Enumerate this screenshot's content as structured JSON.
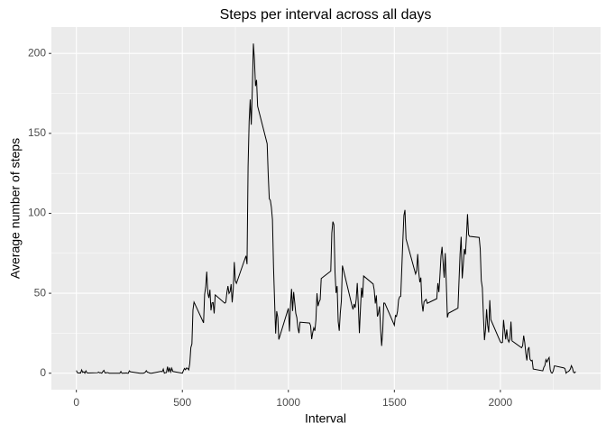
{
  "chart_data": {
    "type": "line",
    "title": "Steps per interval across all days",
    "x_label": "Interval",
    "y_label": "Average number of steps",
    "color": "#000000",
    "grid": true,
    "xlim": [
      -117.75,
      2472.75
    ],
    "ylim": [
      -10.31,
      216.48
    ],
    "xticks": [
      0,
      500,
      1000,
      1500,
      2000
    ],
    "yticks": [
      0,
      50,
      100,
      150,
      200
    ],
    "xminor": [
      250,
      750,
      1250,
      1750,
      2250
    ],
    "yminor": [
      25,
      75,
      125,
      175
    ],
    "x": [
      0,
      5,
      10,
      15,
      20,
      25,
      30,
      35,
      40,
      45,
      50,
      55,
      100,
      105,
      110,
      115,
      120,
      125,
      130,
      135,
      140,
      145,
      150,
      155,
      200,
      205,
      210,
      215,
      220,
      225,
      230,
      235,
      240,
      245,
      250,
      255,
      300,
      305,
      310,
      315,
      320,
      325,
      330,
      335,
      340,
      345,
      350,
      355,
      400,
      405,
      410,
      415,
      420,
      425,
      430,
      435,
      440,
      445,
      450,
      455,
      500,
      505,
      510,
      515,
      520,
      525,
      530,
      535,
      540,
      545,
      550,
      555,
      600,
      605,
      610,
      615,
      620,
      625,
      630,
      635,
      640,
      645,
      650,
      655,
      700,
      705,
      710,
      715,
      720,
      725,
      730,
      735,
      740,
      745,
      750,
      755,
      800,
      805,
      810,
      815,
      820,
      825,
      830,
      835,
      840,
      845,
      850,
      855,
      900,
      905,
      910,
      915,
      920,
      925,
      930,
      935,
      940,
      945,
      950,
      955,
      1000,
      1005,
      1010,
      1015,
      1020,
      1025,
      1030,
      1035,
      1040,
      1045,
      1050,
      1055,
      1100,
      1105,
      1110,
      1115,
      1120,
      1125,
      1130,
      1135,
      1140,
      1145,
      1150,
      1155,
      1200,
      1205,
      1210,
      1215,
      1220,
      1225,
      1230,
      1235,
      1240,
      1245,
      1250,
      1255,
      1300,
      1305,
      1310,
      1315,
      1320,
      1325,
      1330,
      1335,
      1340,
      1345,
      1350,
      1355,
      1400,
      1405,
      1410,
      1415,
      1420,
      1425,
      1430,
      1435,
      1440,
      1445,
      1450,
      1455,
      1500,
      1505,
      1510,
      1515,
      1520,
      1525,
      1530,
      1535,
      1540,
      1545,
      1550,
      1555,
      1600,
      1605,
      1610,
      1615,
      1620,
      1625,
      1630,
      1635,
      1640,
      1645,
      1650,
      1655,
      1700,
      1705,
      1710,
      1715,
      1720,
      1725,
      1730,
      1735,
      1740,
      1745,
      1750,
      1755,
      1800,
      1805,
      1810,
      1815,
      1820,
      1825,
      1830,
      1835,
      1840,
      1845,
      1850,
      1855,
      1900,
      1905,
      1910,
      1915,
      1920,
      1925,
      1930,
      1935,
      1940,
      1945,
      1950,
      1955,
      2000,
      2005,
      2010,
      2015,
      2020,
      2025,
      2030,
      2035,
      2040,
      2045,
      2050,
      2055,
      2100,
      2105,
      2110,
      2115,
      2120,
      2125,
      2130,
      2135,
      2140,
      2145,
      2150,
      2155,
      2200,
      2205,
      2210,
      2215,
      2220,
      2225,
      2230,
      2235,
      2240,
      2245,
      2250,
      2255,
      2300,
      2305,
      2310,
      2315,
      2320,
      2325,
      2330,
      2335,
      2340,
      2345,
      2350,
      2355
    ],
    "values": [
      1.7,
      0.3,
      0.1,
      0.2,
      0.1,
      2.1,
      0.5,
      0.9,
      0,
      1.5,
      0.3,
      0.1,
      0.3,
      0.7,
      0.2,
      0.3,
      0,
      1.1,
      1.8,
      0.2,
      0.2,
      0.4,
      0.3,
      0,
      0,
      0,
      1.1,
      0,
      0,
      0.1,
      0,
      0.2,
      0,
      0,
      1.5,
      0.9,
      0,
      0,
      0,
      0,
      0.2,
      0.6,
      1.6,
      0.6,
      0.5,
      0.1,
      0,
      0,
      1.2,
      0.9,
      2.6,
      0,
      0.3,
      0.4,
      4.1,
      0.7,
      3.5,
      0.8,
      3.1,
      1.1,
      0,
      1.6,
      3,
      2.2,
      3.3,
      3,
      2.1,
      6,
      16,
      18.3,
      39.5,
      44.5,
      31.5,
      49.3,
      53.8,
      63.5,
      50,
      47.1,
      52.2,
      39.3,
      44,
      44.2,
      37.4,
      49,
      43.8,
      44.4,
      50.5,
      54.5,
      49.9,
      51,
      55.7,
      44.3,
      52.3,
      69.5,
      57.8,
      56.2,
      73.4,
      68.2,
      129.4,
      157.5,
      171.2,
      155.4,
      177.3,
      206.2,
      195.9,
      179.6,
      183.4,
      167,
      143.5,
      124,
      109.1,
      108.1,
      103.7,
      96,
      66.2,
      45.2,
      24.8,
      38.8,
      35,
      21.1,
      40.6,
      26.1,
      42.4,
      52.7,
      38.9,
      50.8,
      44.3,
      37.4,
      34.7,
      28.3,
      25.1,
      31.9,
      31.4,
      29.7,
      21.3,
      25.5,
      28.4,
      26.5,
      33.4,
      50,
      42,
      44.6,
      46,
      59.2,
      63.9,
      87.7,
      94.8,
      92.8,
      63.4,
      50.2,
      54.5,
      32.4,
      26.5,
      37.7,
      45.1,
      67.3,
      42.3,
      39.9,
      43.3,
      41,
      46.2,
      56.4,
      42.8,
      25.1,
      40,
      53.5,
      47.3,
      60.8,
      55.8,
      52,
      43.6,
      48.7,
      35.5,
      37.5,
      41.8,
      27.5,
      17.1,
      26.2,
      43.9,
      43.8,
      30,
      36.1,
      35.5,
      38.8,
      46,
      47.8,
      48.1,
      65.3,
      82.9,
      98.7,
      102.1,
      84,
      62.1,
      64.1,
      74.5,
      63.2,
      56.9,
      59.8,
      43.9,
      38.6,
      44.7,
      45.5,
      46.2,
      43.7,
      46.6,
      56.3,
      50.7,
      61.2,
      73.4,
      79,
      68.9,
      59.7,
      75.1,
      56.5,
      34.8,
      37.5,
      40.7,
      58,
      74.7,
      85.3,
      59.3,
      67.8,
      77.7,
      74.2,
      85.3,
      99.5,
      86.6,
      85.6,
      84.9,
      77.8,
      58,
      53.4,
      36.3,
      20.7,
      27.4,
      40,
      30.2,
      25.5,
      45.7,
      33.5,
      19.6,
      19,
      19.3,
      33.3,
      26.8,
      21.2,
      27.3,
      21.3,
      19.5,
      21.3,
      32.3,
      20.2,
      15.9,
      17.2,
      23.5,
      19.2,
      12.5,
      8,
      14.7,
      16.3,
      8.7,
      7.8,
      8.1,
      2.6,
      1.5,
      3.7,
      4.8,
      8.5,
      7.1,
      8.7,
      9.8,
      2.2,
      0.3,
      0.1,
      1.6,
      4.6,
      3.3,
      2.8,
      0,
      0.8,
      1,
      1.6,
      2.6,
      4.7,
      3.3,
      0.6,
      0.2,
      1.1
    ]
  }
}
